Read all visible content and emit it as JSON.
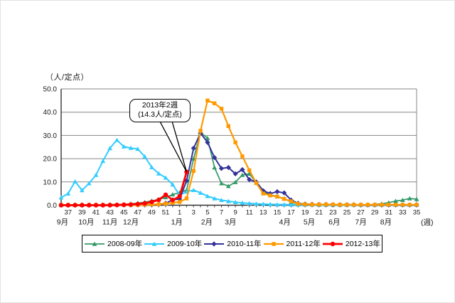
{
  "figure": {
    "y_axis_title": "（人/定点）",
    "x_axis_unit_label": "(週)"
  },
  "chart_data": {
    "type": "line",
    "title": "",
    "y_axis_title": "（人/定点）",
    "x_axis_unit_label": "(週)",
    "ylim": [
      0,
      50
    ],
    "y_tick_labels": [
      "0.0",
      "10.0",
      "20.0",
      "30.0",
      "40.0",
      "50.0"
    ],
    "grid": true,
    "legend_position": "bottom",
    "weeks": [
      36,
      37,
      38,
      39,
      40,
      41,
      42,
      43,
      44,
      45,
      46,
      47,
      48,
      49,
      50,
      51,
      52,
      1,
      2,
      3,
      4,
      5,
      6,
      7,
      8,
      9,
      10,
      11,
      12,
      13,
      14,
      15,
      16,
      17,
      18,
      19,
      20,
      21,
      22,
      23,
      24,
      25,
      26,
      27,
      28,
      29,
      30,
      31,
      32,
      33,
      34,
      35
    ],
    "months": [
      {
        "label": "9月",
        "pos": 0.2
      },
      {
        "label": "10月",
        "pos": 3.6
      },
      {
        "label": "11月",
        "pos": 7.0
      },
      {
        "label": "12月",
        "pos": 10.0
      },
      {
        "label": "1月",
        "pos": 16.6
      },
      {
        "label": "2月",
        "pos": 20.9
      },
      {
        "label": "3月",
        "pos": 24.3
      },
      {
        "label": "4月",
        "pos": 32.1
      },
      {
        "label": "5月",
        "pos": 35.6
      },
      {
        "label": "6月",
        "pos": 39.2
      },
      {
        "label": "7月",
        "pos": 43.0
      },
      {
        "label": "8月",
        "pos": 46.6
      }
    ],
    "series": [
      {
        "name": "2008-09年",
        "color": "#339966",
        "marker": "triangle",
        "line_width": 1.7,
        "values": [
          0.1,
          0.1,
          0.1,
          0.1,
          0.1,
          0.2,
          0.2,
          0.3,
          0.3,
          0.4,
          0.6,
          0.9,
          1.3,
          1.9,
          2.5,
          3.4,
          4.6,
          5.4,
          6.5,
          20.0,
          31.3,
          28.8,
          16.2,
          9.4,
          8.2,
          9.9,
          13.0,
          13.5,
          9.7,
          5.8,
          4.4,
          3.8,
          2.8,
          1.3,
          0.6,
          0.4,
          0.3,
          0.3,
          0.3,
          0.2,
          0.2,
          0.2,
          0.2,
          0.2,
          0.2,
          0.3,
          0.6,
          1.1,
          1.8,
          2.2,
          2.9,
          2.6
        ]
      },
      {
        "name": "2009-10年",
        "color": "#33CCFF",
        "marker": "triangle",
        "line_width": 2.0,
        "values": [
          3.3,
          5.0,
          10.2,
          6.4,
          9.4,
          13.0,
          19.0,
          24.5,
          28.0,
          25.2,
          24.6,
          24.2,
          20.9,
          16.3,
          13.6,
          11.8,
          8.9,
          4.3,
          5.8,
          6.5,
          5.3,
          3.9,
          2.9,
          2.2,
          1.7,
          1.3,
          1.0,
          0.8,
          0.6,
          0.5,
          0.4,
          0.3,
          0.3,
          0.2,
          0.2,
          0.2,
          0.2,
          0.1,
          0.1,
          0.1,
          0.1,
          0.1,
          0.1,
          0.1,
          0.1,
          0.1,
          0.1,
          0.1,
          0.1,
          0.1,
          0.1,
          0.1
        ]
      },
      {
        "name": "2010-11年",
        "color": "#333399",
        "marker": "diamond",
        "line_width": 2.0,
        "values": [
          0.1,
          0.1,
          0.1,
          0.1,
          0.1,
          0.1,
          0.1,
          0.1,
          0.1,
          0.1,
          0.1,
          0.1,
          0.1,
          0.2,
          0.4,
          0.9,
          2.3,
          2.7,
          10.5,
          24.5,
          31.0,
          27.0,
          20.5,
          15.8,
          16.2,
          13.5,
          15.3,
          11.0,
          10.0,
          6.2,
          5.0,
          5.8,
          5.3,
          2.2,
          0.8,
          0.5,
          0.4,
          0.3,
          0.3,
          0.2,
          0.2,
          0.2,
          0.2,
          0.1,
          0.1,
          0.1,
          0.1,
          0.1,
          0.1,
          0.1,
          0.1,
          0.1
        ]
      },
      {
        "name": "2011-12年",
        "color": "#FF9900",
        "marker": "square",
        "line_width": 2.2,
        "values": [
          0.1,
          0.1,
          0.1,
          0.1,
          0.1,
          0.1,
          0.1,
          0.1,
          0.1,
          0.1,
          0.1,
          0.1,
          0.2,
          0.3,
          0.4,
          0.7,
          1.0,
          1.4,
          2.9,
          14.7,
          32.0,
          45.0,
          43.8,
          41.5,
          34.0,
          27.0,
          21.0,
          15.0,
          9.5,
          5.0,
          4.2,
          3.7,
          2.7,
          1.7,
          0.6,
          0.4,
          0.3,
          0.3,
          0.3,
          0.3,
          0.2,
          0.2,
          0.2,
          0.2,
          0.2,
          0.2,
          0.2,
          0.2,
          0.2,
          0.2,
          0.2,
          0.2
        ]
      },
      {
        "name": "2012-13年",
        "color": "#FF0000",
        "marker": "circle",
        "line_width": 2.8,
        "values": [
          0.0,
          0.0,
          0.0,
          0.0,
          0.0,
          0.0,
          0.0,
          0.0,
          0.1,
          0.2,
          0.3,
          0.5,
          0.8,
          1.4,
          2.3,
          4.5,
          2.2,
          3.8,
          14.3,
          null,
          null,
          null,
          null,
          null,
          null,
          null,
          null,
          null,
          null,
          null,
          null,
          null,
          null,
          null,
          null,
          null,
          null,
          null,
          null,
          null,
          null,
          null,
          null,
          null,
          null,
          null,
          null,
          null,
          null,
          null,
          null,
          null
        ]
      }
    ],
    "annotation": {
      "line1": "2013年2週",
      "line2": "(14.3人/定点)",
      "points_to": {
        "week": 2,
        "value": 14.3
      }
    }
  }
}
